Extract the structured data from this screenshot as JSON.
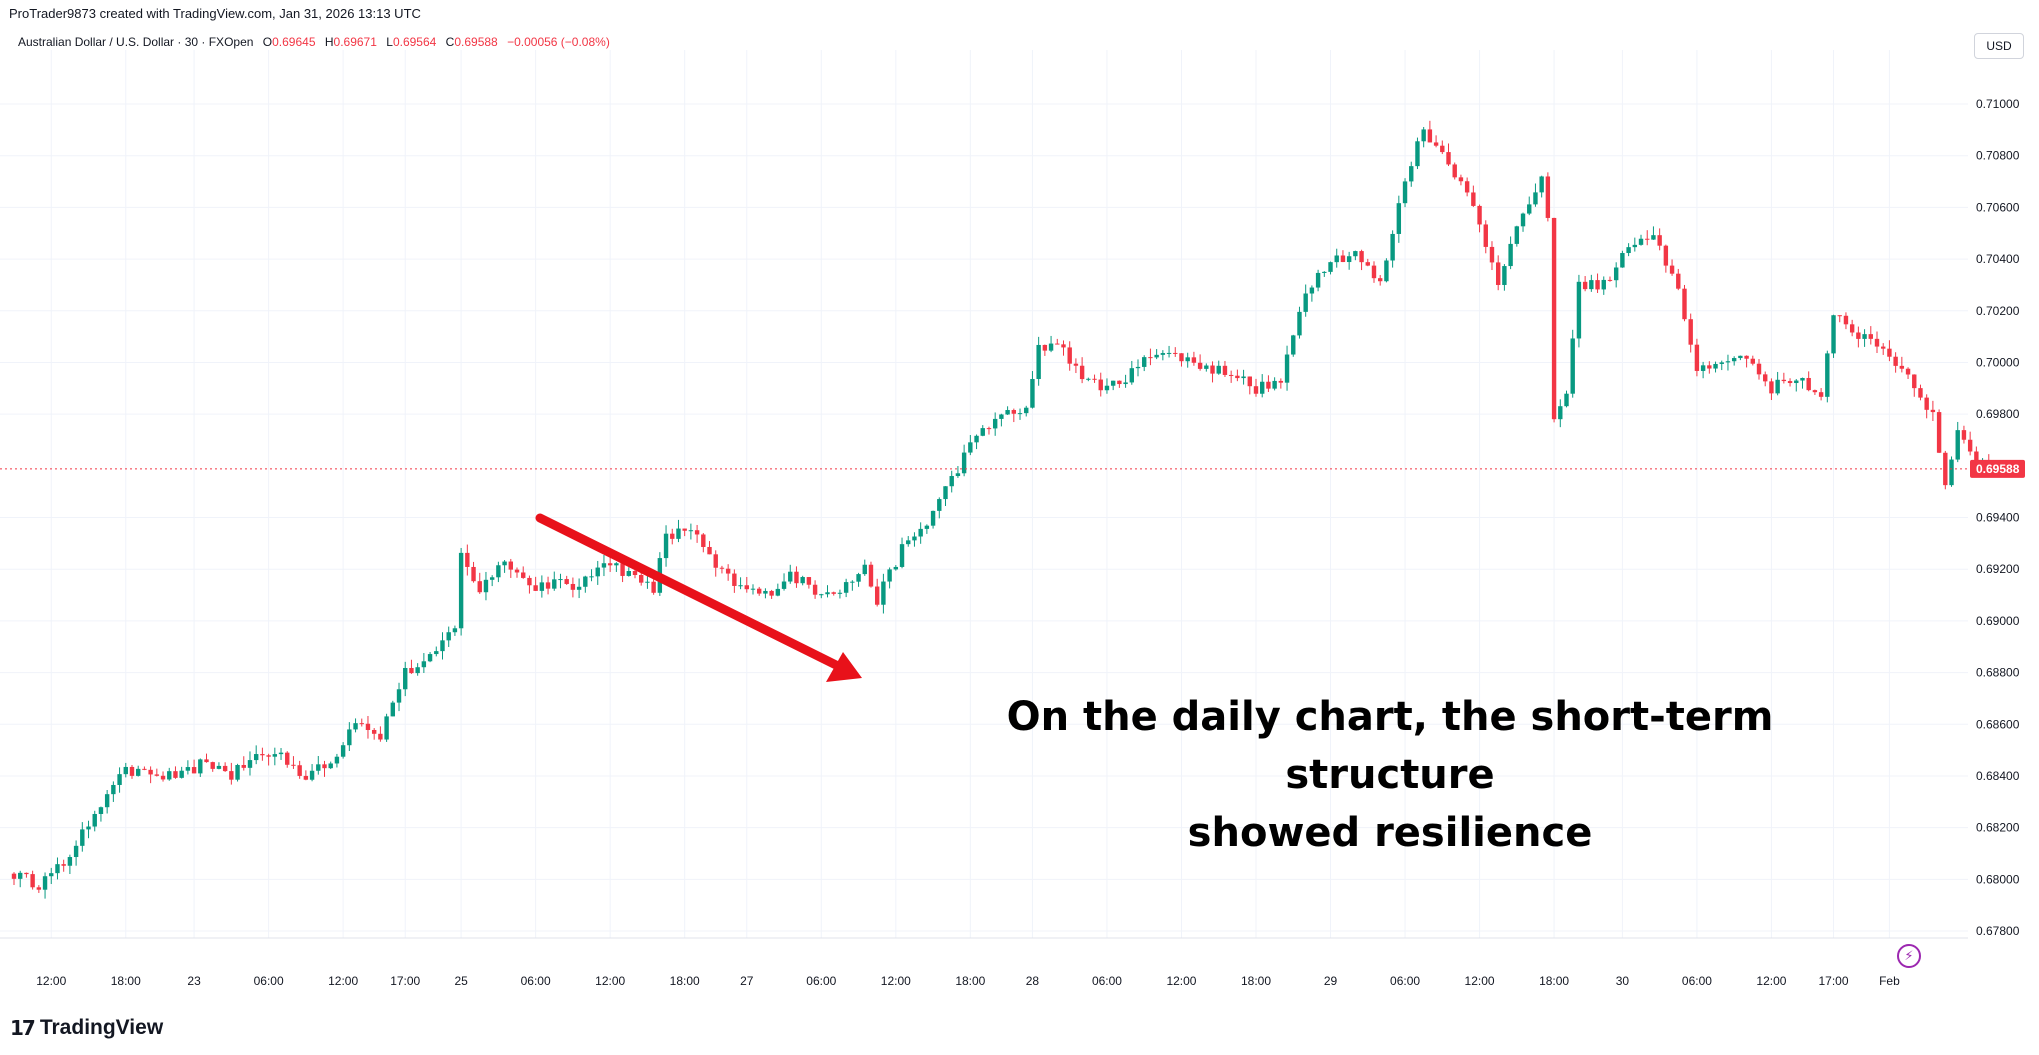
{
  "header": {
    "credit": "ProTrader9873 created with TradingView.com, Jan 31, 2026 13:13 UTC",
    "symbol": "Australian Dollar / U.S. Dollar · 30 · FXOpen",
    "ohlc": {
      "o_label": "O",
      "o": "0.69645",
      "h_label": "H",
      "h": "0.69671",
      "l_label": "L",
      "l": "0.69564",
      "c_label": "C",
      "c": "0.69588",
      "change": "−0.00056 (−0.08%)"
    },
    "currency": "USD"
  },
  "annotation": {
    "line1": "On the daily chart, the short-term structure",
    "line2": "showed resilience"
  },
  "branding": {
    "logo_mark": "17",
    "logo_text": "TradingView"
  },
  "icons": {
    "bolt": "lightning-bolt-icon",
    "logo": "tradingview-logo-icon"
  },
  "colors": {
    "up": "#089981",
    "down": "#f23645",
    "arrow": "#e8111a",
    "grid": "#f0f3fa",
    "last_price": "#f23645"
  },
  "chart_data": {
    "type": "candlestick",
    "timeframe": "30",
    "ylim": [
      0.677,
      0.711
    ],
    "y_ticks": [
      "0.71000",
      "0.70800",
      "0.70600",
      "0.70400",
      "0.70200",
      "0.70000",
      "0.69800",
      "0.69400",
      "0.69200",
      "0.69000",
      "0.68800",
      "0.68600",
      "0.68400",
      "0.68200",
      "0.68000",
      "0.67800"
    ],
    "x_ticks": [
      {
        "label": "12:00",
        "bar": 6
      },
      {
        "label": "18:00",
        "bar": 18
      },
      {
        "label": "23",
        "bar": 29
      },
      {
        "label": "06:00",
        "bar": 41
      },
      {
        "label": "12:00",
        "bar": 53
      },
      {
        "label": "17:00",
        "bar": 63
      },
      {
        "label": "25",
        "bar": 72
      },
      {
        "label": "06:00",
        "bar": 84
      },
      {
        "label": "12:00",
        "bar": 96
      },
      {
        "label": "18:00",
        "bar": 108
      },
      {
        "label": "27",
        "bar": 118
      },
      {
        "label": "06:00",
        "bar": 130
      },
      {
        "label": "12:00",
        "bar": 142
      },
      {
        "label": "18:00",
        "bar": 154
      },
      {
        "label": "28",
        "bar": 164
      },
      {
        "label": "06:00",
        "bar": 176
      },
      {
        "label": "12:00",
        "bar": 188
      },
      {
        "label": "18:00",
        "bar": 200
      },
      {
        "label": "29",
        "bar": 212
      },
      {
        "label": "06:00",
        "bar": 224
      },
      {
        "label": "12:00",
        "bar": 236
      },
      {
        "label": "18:00",
        "bar": 248
      },
      {
        "label": "30",
        "bar": 259
      },
      {
        "label": "06:00",
        "bar": 271
      },
      {
        "label": "12:00",
        "bar": 283
      },
      {
        "label": "17:00",
        "bar": 293
      },
      {
        "label": "Feb",
        "bar": 302
      }
    ],
    "last_price": "0.69588",
    "waypoints": [
      [
        0,
        0.6802
      ],
      [
        4,
        0.6798
      ],
      [
        8,
        0.6806
      ],
      [
        12,
        0.6822
      ],
      [
        17,
        0.6842
      ],
      [
        22,
        0.684
      ],
      [
        27,
        0.684
      ],
      [
        31,
        0.6846
      ],
      [
        35,
        0.684
      ],
      [
        39,
        0.6848
      ],
      [
        43,
        0.6848
      ],
      [
        47,
        0.684
      ],
      [
        51,
        0.6845
      ],
      [
        55,
        0.6862
      ],
      [
        59,
        0.6856
      ],
      [
        63,
        0.688
      ],
      [
        67,
        0.6885
      ],
      [
        71,
        0.6898
      ],
      [
        72,
        0.6925
      ],
      [
        75,
        0.6912
      ],
      [
        79,
        0.6925
      ],
      [
        83,
        0.6913
      ],
      [
        87,
        0.6915
      ],
      [
        91,
        0.6912
      ],
      [
        95,
        0.6924
      ],
      [
        99,
        0.6918
      ],
      [
        103,
        0.6913
      ],
      [
        105,
        0.6932
      ],
      [
        109,
        0.6936
      ],
      [
        113,
        0.692
      ],
      [
        117,
        0.6913
      ],
      [
        121,
        0.691
      ],
      [
        125,
        0.6918
      ],
      [
        129,
        0.6912
      ],
      [
        133,
        0.6912
      ],
      [
        137,
        0.692
      ],
      [
        139,
        0.6908
      ],
      [
        143,
        0.6928
      ],
      [
        147,
        0.6938
      ],
      [
        151,
        0.6955
      ],
      [
        155,
        0.6972
      ],
      [
        159,
        0.698
      ],
      [
        163,
        0.6982
      ],
      [
        165,
        0.7005
      ],
      [
        168,
        0.7008
      ],
      [
        172,
        0.6995
      ],
      [
        176,
        0.699
      ],
      [
        180,
        0.6996
      ],
      [
        184,
        0.7005
      ],
      [
        188,
        0.7002
      ],
      [
        192,
        0.6998
      ],
      [
        196,
        0.6996
      ],
      [
        200,
        0.699
      ],
      [
        204,
        0.6992
      ],
      [
        208,
        0.7028
      ],
      [
        212,
        0.704
      ],
      [
        216,
        0.7042
      ],
      [
        220,
        0.703
      ],
      [
        224,
        0.7072
      ],
      [
        227,
        0.709
      ],
      [
        231,
        0.7078
      ],
      [
        235,
        0.706
      ],
      [
        239,
        0.7032
      ],
      [
        243,
        0.7058
      ],
      [
        246,
        0.707
      ],
      [
        247,
        0.7058
      ],
      [
        248,
        0.6977
      ],
      [
        250,
        0.699
      ],
      [
        252,
        0.703
      ],
      [
        256,
        0.703
      ],
      [
        260,
        0.7045
      ],
      [
        264,
        0.7048
      ],
      [
        268,
        0.703
      ],
      [
        271,
        0.6995
      ],
      [
        275,
        0.7002
      ],
      [
        279,
        0.7002
      ],
      [
        283,
        0.699
      ],
      [
        287,
        0.6995
      ],
      [
        291,
        0.6985
      ],
      [
        293,
        0.702
      ],
      [
        297,
        0.701
      ],
      [
        301,
        0.7005
      ],
      [
        305,
        0.6995
      ],
      [
        309,
        0.698
      ],
      [
        311,
        0.6952
      ],
      [
        313,
        0.6975
      ],
      [
        316,
        0.6962
      ],
      [
        318,
        0.696
      ]
    ],
    "up_color": "#089981",
    "down_color": "#f23645"
  }
}
